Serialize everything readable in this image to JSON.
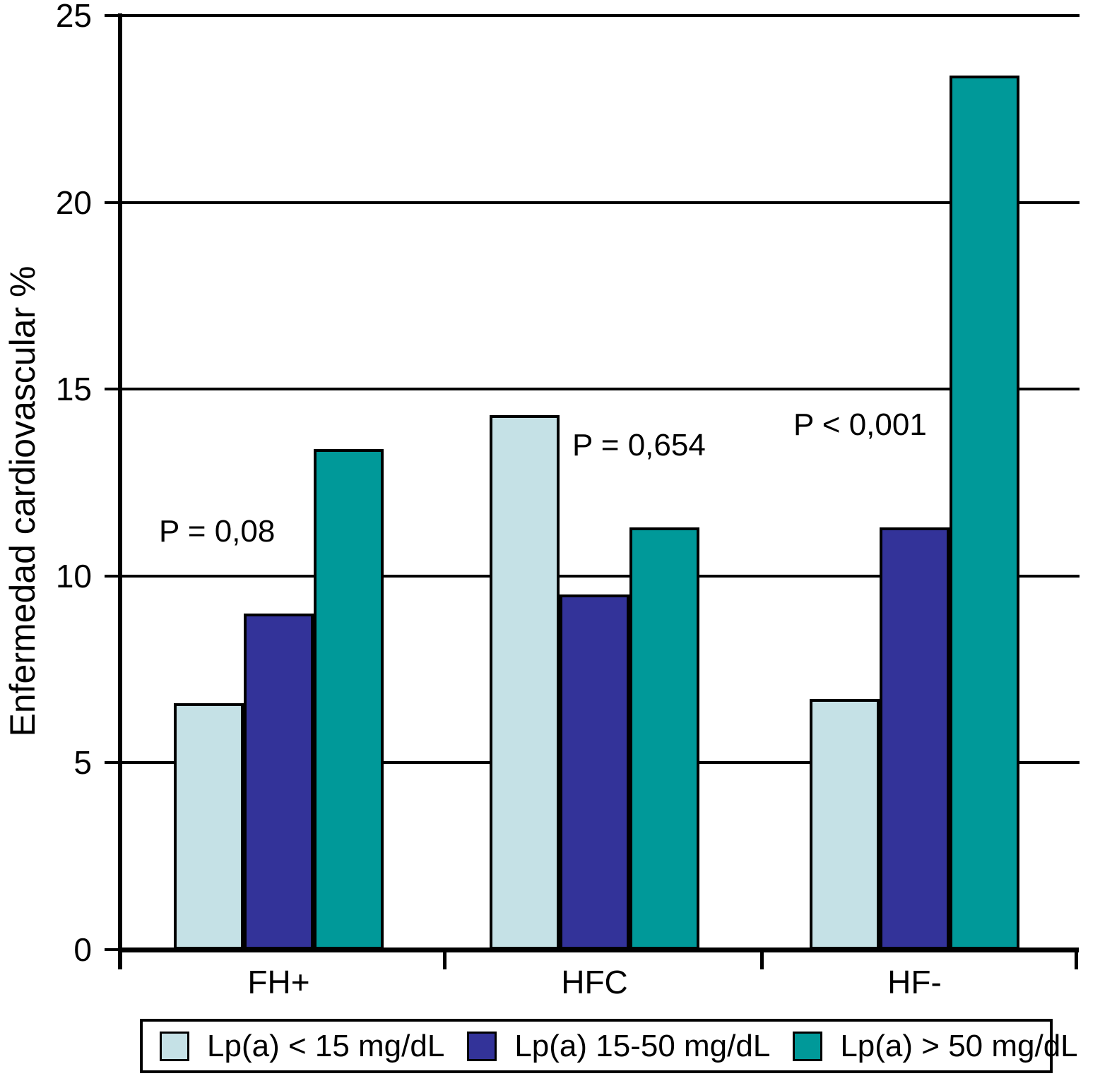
{
  "chart_data": {
    "type": "bar",
    "title": "",
    "xlabel": "",
    "ylabel": "Enfermedad cardiovascular %",
    "ylim": [
      0,
      25
    ],
    "yticks": [
      0,
      5,
      10,
      15,
      20,
      25
    ],
    "grid": "horizontal gridlines at each y tick",
    "legend_position": "bottom",
    "categories": [
      "FH+",
      "HFC",
      "HF-"
    ],
    "series": [
      {
        "name": "Lp(a) < 15 mg/dL",
        "color": "#c5e1e6",
        "values": [
          6.6,
          14.3,
          6.7
        ]
      },
      {
        "name": "Lp(a) 15-50 mg/dL",
        "color": "#333399",
        "values": [
          9.0,
          9.5,
          11.3
        ]
      },
      {
        "name": "Lp(a) > 50 mg/dL",
        "color": "#009999",
        "values": [
          13.4,
          11.3,
          23.4
        ]
      }
    ],
    "annotations": [
      {
        "text": "P = 0,08",
        "category": "FH+"
      },
      {
        "text": "P = 0,654",
        "category": "HFC"
      },
      {
        "text": "P < 0,001",
        "category": "HF-"
      }
    ],
    "colors": {
      "axis": "#000000",
      "background": "#ffffff"
    }
  }
}
